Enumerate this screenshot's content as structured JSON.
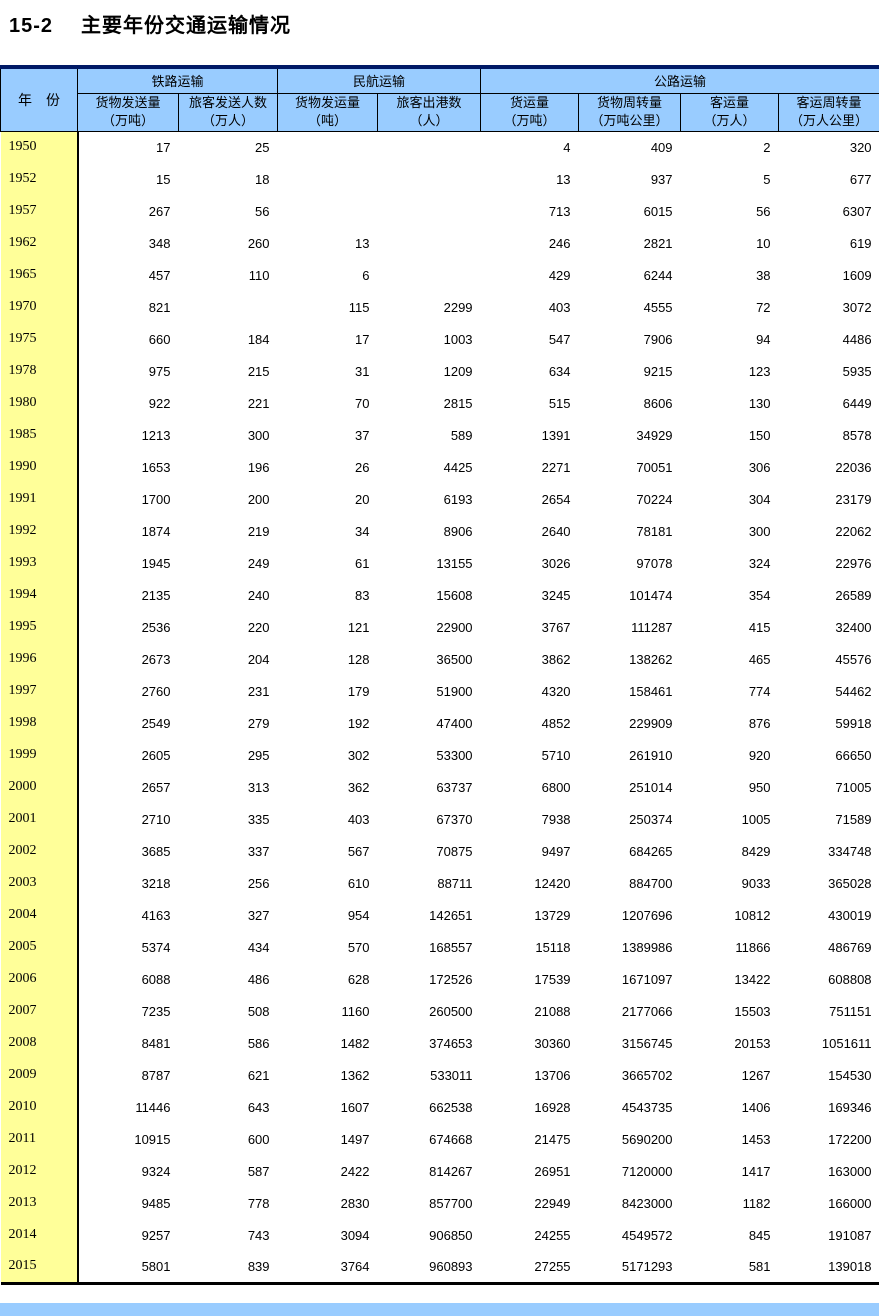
{
  "title": {
    "number": "15-2",
    "text": "主要年份交通运输情况"
  },
  "colors": {
    "header_bg": "#99CCFF",
    "year_column_bg": "#FFFF99",
    "table_top_border": "#001a66",
    "table_bottom_border": "#000000",
    "bottom_bar": "#99CCFF",
    "text": "#000000"
  },
  "table": {
    "year_header": "年　份",
    "groups": [
      {
        "label": "铁路运输"
      },
      {
        "label": "民航运输"
      },
      {
        "label": "公路运输"
      }
    ],
    "columns": [
      {
        "name": "货物发送量",
        "unit": "（万吨）"
      },
      {
        "name": "旅客发送人数",
        "unit": "（万人）"
      },
      {
        "name": "货物发运量",
        "unit": "（吨）"
      },
      {
        "name": "旅客出港数",
        "unit": "（人）"
      },
      {
        "name": "货运量",
        "unit": "（万吨）"
      },
      {
        "name": "货物周转量",
        "unit": "（万吨公里）"
      },
      {
        "name": "客运量",
        "unit": "（万人）"
      },
      {
        "name": "客运周转量",
        "unit": "（万人公里）"
      }
    ],
    "rows": [
      {
        "year": "1950",
        "values": [
          "17",
          "25",
          "",
          "",
          "4",
          "409",
          "2",
          "320"
        ]
      },
      {
        "year": "1952",
        "values": [
          "15",
          "18",
          "",
          "",
          "13",
          "937",
          "5",
          "677"
        ]
      },
      {
        "year": "1957",
        "values": [
          "267",
          "56",
          "",
          "",
          "713",
          "6015",
          "56",
          "6307"
        ]
      },
      {
        "year": "1962",
        "values": [
          "348",
          "260",
          "13",
          "",
          "246",
          "2821",
          "10",
          "619"
        ]
      },
      {
        "year": "1965",
        "values": [
          "457",
          "110",
          "6",
          "",
          "429",
          "6244",
          "38",
          "1609"
        ]
      },
      {
        "year": "1970",
        "values": [
          "821",
          "",
          "115",
          "2299",
          "403",
          "4555",
          "72",
          "3072"
        ]
      },
      {
        "year": "1975",
        "values": [
          "660",
          "184",
          "17",
          "1003",
          "547",
          "7906",
          "94",
          "4486"
        ]
      },
      {
        "year": "1978",
        "values": [
          "975",
          "215",
          "31",
          "1209",
          "634",
          "9215",
          "123",
          "5935"
        ]
      },
      {
        "year": "1980",
        "values": [
          "922",
          "221",
          "70",
          "2815",
          "515",
          "8606",
          "130",
          "6449"
        ]
      },
      {
        "year": "1985",
        "values": [
          "1213",
          "300",
          "37",
          "589",
          "1391",
          "34929",
          "150",
          "8578"
        ]
      },
      {
        "year": "1990",
        "values": [
          "1653",
          "196",
          "26",
          "4425",
          "2271",
          "70051",
          "306",
          "22036"
        ]
      },
      {
        "year": "1991",
        "values": [
          "1700",
          "200",
          "20",
          "6193",
          "2654",
          "70224",
          "304",
          "23179"
        ]
      },
      {
        "year": "1992",
        "values": [
          "1874",
          "219",
          "34",
          "8906",
          "2640",
          "78181",
          "300",
          "22062"
        ]
      },
      {
        "year": "1993",
        "values": [
          "1945",
          "249",
          "61",
          "13155",
          "3026",
          "97078",
          "324",
          "22976"
        ]
      },
      {
        "year": "1994",
        "values": [
          "2135",
          "240",
          "83",
          "15608",
          "3245",
          "101474",
          "354",
          "26589"
        ]
      },
      {
        "year": "1995",
        "values": [
          "2536",
          "220",
          "121",
          "22900",
          "3767",
          "111287",
          "415",
          "32400"
        ]
      },
      {
        "year": "1996",
        "values": [
          "2673",
          "204",
          "128",
          "36500",
          "3862",
          "138262",
          "465",
          "45576"
        ]
      },
      {
        "year": "1997",
        "values": [
          "2760",
          "231",
          "179",
          "51900",
          "4320",
          "158461",
          "774",
          "54462"
        ]
      },
      {
        "year": "1998",
        "values": [
          "2549",
          "279",
          "192",
          "47400",
          "4852",
          "229909",
          "876",
          "59918"
        ]
      },
      {
        "year": "1999",
        "values": [
          "2605",
          "295",
          "302",
          "53300",
          "5710",
          "261910",
          "920",
          "66650"
        ]
      },
      {
        "year": "2000",
        "values": [
          "2657",
          "313",
          "362",
          "63737",
          "6800",
          "251014",
          "950",
          "71005"
        ]
      },
      {
        "year": "2001",
        "values": [
          "2710",
          "335",
          "403",
          "67370",
          "7938",
          "250374",
          "1005",
          "71589"
        ]
      },
      {
        "year": "2002",
        "values": [
          "3685",
          "337",
          "567",
          "70875",
          "9497",
          "684265",
          "8429",
          "334748"
        ]
      },
      {
        "year": "2003",
        "values": [
          "3218",
          "256",
          "610",
          "88711",
          "12420",
          "884700",
          "9033",
          "365028"
        ]
      },
      {
        "year": "2004",
        "values": [
          "4163",
          "327",
          "954",
          "142651",
          "13729",
          "1207696",
          "10812",
          "430019"
        ]
      },
      {
        "year": "2005",
        "values": [
          "5374",
          "434",
          "570",
          "168557",
          "15118",
          "1389986",
          "11866",
          "486769"
        ]
      },
      {
        "year": "2006",
        "values": [
          "6088",
          "486",
          "628",
          "172526",
          "17539",
          "1671097",
          "13422",
          "608808"
        ]
      },
      {
        "year": "2007",
        "values": [
          "7235",
          "508",
          "1160",
          "260500",
          "21088",
          "2177066",
          "15503",
          "751151"
        ]
      },
      {
        "year": "2008",
        "values": [
          "8481",
          "586",
          "1482",
          "374653",
          "30360",
          "3156745",
          "20153",
          "1051611"
        ]
      },
      {
        "year": "2009",
        "values": [
          "8787",
          "621",
          "1362",
          "533011",
          "13706",
          "3665702",
          "1267",
          "154530"
        ]
      },
      {
        "year": "2010",
        "values": [
          "11446",
          "643",
          "1607",
          "662538",
          "16928",
          "4543735",
          "1406",
          "169346"
        ]
      },
      {
        "year": "2011",
        "values": [
          "10915",
          "600",
          "1497",
          "674668",
          "21475",
          "5690200",
          "1453",
          "172200"
        ]
      },
      {
        "year": "2012",
        "values": [
          "9324",
          "587",
          "2422",
          "814267",
          "26951",
          "7120000",
          "1417",
          "163000"
        ]
      },
      {
        "year": "2013",
        "values": [
          "9485",
          "778",
          "2830",
          "857700",
          "22949",
          "8423000",
          "1182",
          "166000"
        ]
      },
      {
        "year": "2014",
        "values": [
          "9257",
          "743",
          "3094",
          "906850",
          "24255",
          "4549572",
          "845",
          "191087"
        ]
      },
      {
        "year": "2015",
        "values": [
          "5801",
          "839",
          "3764",
          "960893",
          "27255",
          "5171293",
          "581",
          "139018"
        ]
      }
    ]
  }
}
